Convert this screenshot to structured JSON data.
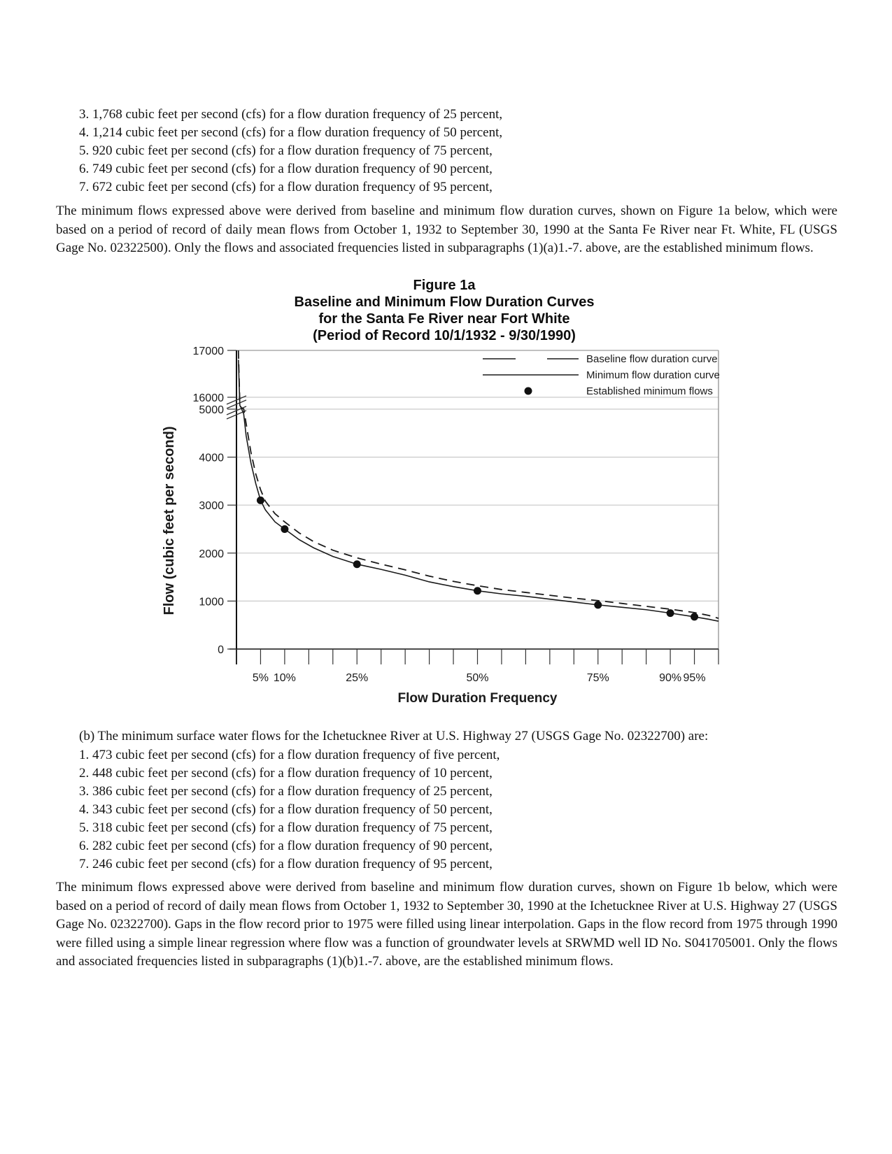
{
  "doc": {
    "items_a": [
      "3. 1,768 cubic feet per second (cfs) for a flow duration frequency of 25 percent,",
      "4. 1,214 cubic feet per second (cfs) for a flow duration frequency of 50 percent,",
      "5. 920 cubic feet per second (cfs) for a flow duration frequency of 75 percent,",
      "6. 749 cubic feet per second (cfs) for a flow duration frequency of 90 percent,",
      "7. 672 cubic feet per second (cfs) for a flow duration frequency of 95 percent,"
    ],
    "para_a": "The minimum flows expressed above were derived from baseline and minimum flow duration curves, shown on Figure 1a below, which were based on a period of record of daily mean flows from October 1, 1932 to September 30, 1990 at the Santa Fe River near Ft. White, FL (USGS Gage No. 02322500). Only the flows and associated frequencies listed in subparagraphs (1)(a)1.-7. above, are the established minimum flows.",
    "section_b_intro": "(b) The minimum surface water flows for the Ichetucknee River at U.S. Highway 27 (USGS Gage No. 02322700) are:",
    "items_b": [
      "1. 473 cubic feet per second (cfs) for a flow duration frequency of five percent,",
      "2. 448 cubic feet per second (cfs) for a flow duration frequency of 10 percent,",
      "3. 386 cubic feet per second (cfs) for a flow duration frequency of 25 percent,",
      "4. 343 cubic feet per second (cfs) for a flow duration frequency of 50 percent,",
      "5. 318 cubic feet per second (cfs) for a flow duration frequency of 75 percent,",
      "6. 282 cubic feet per second (cfs) for a flow duration frequency of 90 percent,",
      "7. 246 cubic feet per second (cfs) for a flow duration frequency of 95 percent,"
    ],
    "para_b": "The minimum flows expressed above were derived from baseline and minimum flow duration curves, shown on Figure 1b below, which were based on a period of record of daily mean flows from October 1, 1932 to September 30, 1990 at the Ichetucknee River at U.S. Highway 27 (USGS Gage No. 02322700). Gaps in the flow record prior to 1975 were filled using linear interpolation. Gaps in the flow record from 1975 through 1990 were filled using a simple linear regression where flow was a function of groundwater levels at SRWMD well ID No. S041705001. Only the flows and associated frequencies listed in subparagraphs (1)(b)1.-7. above, are the established minimum flows."
  },
  "figure": {
    "title_line1": "Figure 1a",
    "title_line2": "Baseline and Minimum Flow Duration Curves",
    "title_line3": "for the Santa Fe River near Fort White",
    "title_line4": "(Period of Record 10/1/1932 - 9/30/1990)"
  },
  "chart_data": {
    "type": "line",
    "title": "Figure 1a Baseline and Minimum Flow Duration Curves for the Santa Fe River near Fort White (Period of Record 10/1/1932 - 9/30/1990)",
    "xlabel": "Flow Duration Frequency",
    "ylabel": "Flow (cubic feet per second)",
    "grid": "horizontal",
    "colors": {
      "line": "#1a1a1a",
      "grid": "#c9c9c9",
      "border": "#9a9a9a"
    },
    "x_axis": {
      "range_percent": [
        0,
        100
      ],
      "tick_step_percent": 5,
      "labeled_tick_values": [
        5,
        10,
        25,
        50,
        75,
        90,
        95
      ],
      "labeled_tick_texts": [
        "5%",
        "10%",
        "25%",
        "50%",
        "75%",
        "90%",
        "95%"
      ]
    },
    "y_axis": {
      "ticks": [
        0,
        1000,
        2000,
        3000,
        4000,
        5000,
        16000,
        17000
      ],
      "tick_texts": [
        "0",
        "1000",
        "2000",
        "3000",
        "4000",
        "5000",
        "16000",
        "17000"
      ],
      "break_between": [
        5000,
        16000
      ]
    },
    "legend": {
      "position": "top-right",
      "entries": [
        {
          "label": "Baseline flow duration curve",
          "style": "dashed-line"
        },
        {
          "label": "Minimum flow duration curve",
          "style": "solid-line"
        },
        {
          "label": "Established minimum flows",
          "style": "dot"
        }
      ]
    },
    "series": [
      {
        "name": "Baseline flow duration curve",
        "line_style": "dashed",
        "x": [
          0.4,
          0.7,
          1,
          1.5,
          2,
          3,
          4,
          5,
          6,
          8,
          10,
          13,
          16,
          20,
          25,
          30,
          35,
          40,
          45,
          50,
          55,
          60,
          65,
          70,
          75,
          80,
          85,
          90,
          95,
          98,
          100
        ],
        "y": [
          17000,
          9000,
          6300,
          5200,
          4700,
          4100,
          3650,
          3320,
          3080,
          2820,
          2650,
          2420,
          2240,
          2060,
          1900,
          1770,
          1650,
          1520,
          1410,
          1320,
          1240,
          1180,
          1120,
          1060,
          1010,
          950,
          890,
          830,
          760,
          700,
          640
        ]
      },
      {
        "name": "Minimum flow duration curve",
        "line_style": "solid",
        "x": [
          0.4,
          0.7,
          1,
          1.5,
          2,
          3,
          4,
          5,
          6,
          8,
          10,
          13,
          16,
          20,
          25,
          30,
          35,
          40,
          45,
          50,
          55,
          60,
          65,
          70,
          75,
          80,
          85,
          90,
          95,
          98,
          100
        ],
        "y": [
          16800,
          8500,
          5900,
          4900,
          4450,
          3880,
          3450,
          3100,
          2900,
          2650,
          2500,
          2280,
          2110,
          1930,
          1768,
          1660,
          1540,
          1400,
          1300,
          1214,
          1150,
          1100,
          1040,
          980,
          920,
          870,
          820,
          749,
          672,
          620,
          580
        ]
      },
      {
        "name": "Established minimum flows",
        "marker": "filled-circle",
        "x": [
          5,
          10,
          25,
          50,
          75,
          90,
          95
        ],
        "y": [
          3100,
          2500,
          1768,
          1214,
          920,
          749,
          672
        ]
      }
    ]
  }
}
